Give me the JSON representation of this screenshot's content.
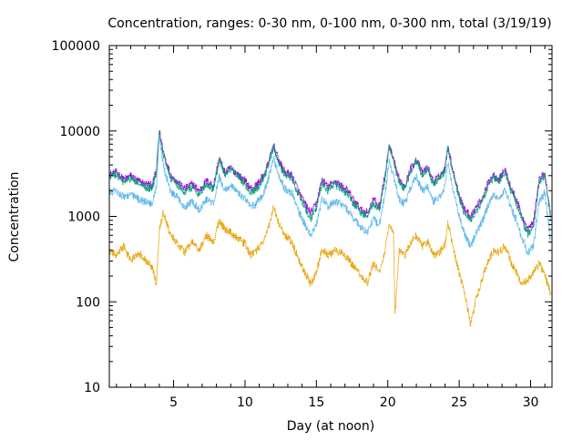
{
  "chart_data": {
    "type": "line",
    "title": "Concentration, ranges: 0-30 nm, 0-100 nm, 0-300 nm, total (3/19/19)",
    "xlabel": "Day (at noon)",
    "ylabel": "Concentration",
    "x_range": [
      0.5,
      31.5
    ],
    "y_range": [
      10,
      100000
    ],
    "y_scale": "log",
    "x_ticks": [
      5,
      10,
      15,
      20,
      25,
      30
    ],
    "x_tick_labels": [
      "5",
      "10",
      "15",
      "20",
      "25",
      "30"
    ],
    "x_minor_ticks": [
      1,
      2,
      3,
      4,
      6,
      7,
      8,
      9,
      11,
      12,
      13,
      14,
      16,
      17,
      18,
      19,
      21,
      22,
      23,
      24,
      26,
      27,
      28,
      29,
      31
    ],
    "y_ticks": [
      10,
      100,
      1000,
      10000,
      100000
    ],
    "y_tick_labels": [
      "10",
      "100",
      "1000",
      "10000",
      "100000"
    ],
    "grid": false,
    "legend": "none",
    "series": [
      {
        "color": "#9400d3",
        "points": [
          [
            0.5,
            3100
          ],
          [
            1,
            3300
          ],
          [
            1.5,
            2700
          ],
          [
            2,
            3000
          ],
          [
            2.5,
            2600
          ],
          [
            3,
            2400
          ],
          [
            3.5,
            2300
          ],
          [
            3.8,
            3500
          ],
          [
            4,
            10000
          ],
          [
            4.3,
            5500
          ],
          [
            4.8,
            3000
          ],
          [
            5.2,
            2600
          ],
          [
            5.8,
            2100
          ],
          [
            6.3,
            2400
          ],
          [
            6.8,
            2000
          ],
          [
            7.3,
            2600
          ],
          [
            7.8,
            2300
          ],
          [
            8.2,
            4800
          ],
          [
            8.6,
            3200
          ],
          [
            9,
            3700
          ],
          [
            9.5,
            3100
          ],
          [
            10,
            2600
          ],
          [
            10.4,
            2100
          ],
          [
            10.8,
            2300
          ],
          [
            11.3,
            3000
          ],
          [
            11.6,
            4000
          ],
          [
            12,
            6800
          ],
          [
            12.4,
            4300
          ],
          [
            12.8,
            3300
          ],
          [
            13.3,
            3000
          ],
          [
            13.8,
            1900
          ],
          [
            14.2,
            1400
          ],
          [
            14.6,
            1100
          ],
          [
            15,
            1400
          ],
          [
            15.4,
            2700
          ],
          [
            15.8,
            2200
          ],
          [
            16.3,
            2600
          ],
          [
            16.7,
            2300
          ],
          [
            17.2,
            2000
          ],
          [
            17.7,
            1500
          ],
          [
            18.1,
            1200
          ],
          [
            18.6,
            1100
          ],
          [
            19,
            1600
          ],
          [
            19.4,
            1300
          ],
          [
            19.8,
            3000
          ],
          [
            20.1,
            6800
          ],
          [
            20.4,
            4500
          ],
          [
            20.8,
            2700
          ],
          [
            21.2,
            2300
          ],
          [
            21.6,
            3600
          ],
          [
            22,
            4700
          ],
          [
            22.4,
            3300
          ],
          [
            22.8,
            3700
          ],
          [
            23.2,
            2600
          ],
          [
            23.6,
            2900
          ],
          [
            24,
            3600
          ],
          [
            24.2,
            6800
          ],
          [
            24.6,
            3200
          ],
          [
            25,
            1800
          ],
          [
            25.4,
            1200
          ],
          [
            25.8,
            1000
          ],
          [
            26.2,
            1300
          ],
          [
            26.6,
            1600
          ],
          [
            27,
            2400
          ],
          [
            27.4,
            3100
          ],
          [
            27.8,
            2700
          ],
          [
            28.2,
            3600
          ],
          [
            28.6,
            2200
          ],
          [
            29,
            1600
          ],
          [
            29.4,
            1000
          ],
          [
            29.8,
            700
          ],
          [
            30.2,
            850
          ],
          [
            30.6,
            2700
          ],
          [
            31,
            3200
          ],
          [
            31.4,
            1000
          ]
        ]
      },
      {
        "color": "#009e73",
        "points": [
          [
            0.5,
            3000
          ],
          [
            1,
            3100
          ],
          [
            1.5,
            2500
          ],
          [
            2,
            2800
          ],
          [
            2.5,
            2400
          ],
          [
            3,
            2200
          ],
          [
            3.5,
            2100
          ],
          [
            3.8,
            3300
          ],
          [
            4,
            9800
          ],
          [
            4.3,
            5300
          ],
          [
            4.8,
            2800
          ],
          [
            5.2,
            2400
          ],
          [
            5.8,
            1900
          ],
          [
            6.3,
            2200
          ],
          [
            6.8,
            1800
          ],
          [
            7.3,
            2400
          ],
          [
            7.8,
            2100
          ],
          [
            8.2,
            4600
          ],
          [
            8.6,
            3000
          ],
          [
            9,
            3500
          ],
          [
            9.5,
            2900
          ],
          [
            10,
            2400
          ],
          [
            10.4,
            1900
          ],
          [
            10.8,
            2100
          ],
          [
            11.3,
            2800
          ],
          [
            11.6,
            3800
          ],
          [
            12,
            6500
          ],
          [
            12.4,
            4100
          ],
          [
            12.8,
            3100
          ],
          [
            13.3,
            2800
          ],
          [
            13.8,
            1700
          ],
          [
            14.2,
            1250
          ],
          [
            14.6,
            950
          ],
          [
            15,
            1250
          ],
          [
            15.4,
            2500
          ],
          [
            15.8,
            2000
          ],
          [
            16.3,
            2400
          ],
          [
            16.7,
            2100
          ],
          [
            17.2,
            1800
          ],
          [
            17.7,
            1350
          ],
          [
            18.1,
            1100
          ],
          [
            18.6,
            1000
          ],
          [
            19,
            1450
          ],
          [
            19.4,
            1150
          ],
          [
            19.8,
            2800
          ],
          [
            20.1,
            6500
          ],
          [
            20.4,
            4300
          ],
          [
            20.8,
            2500
          ],
          [
            21.2,
            2100
          ],
          [
            21.6,
            3400
          ],
          [
            22,
            4500
          ],
          [
            22.4,
            3100
          ],
          [
            22.8,
            3500
          ],
          [
            23.2,
            2400
          ],
          [
            23.6,
            2700
          ],
          [
            24,
            3400
          ],
          [
            24.2,
            6500
          ],
          [
            24.6,
            3000
          ],
          [
            25,
            1650
          ],
          [
            25.4,
            1050
          ],
          [
            25.8,
            900
          ],
          [
            26.2,
            1150
          ],
          [
            26.6,
            1450
          ],
          [
            27,
            2200
          ],
          [
            27.4,
            2900
          ],
          [
            27.8,
            2500
          ],
          [
            28.2,
            3400
          ],
          [
            28.6,
            2000
          ],
          [
            29,
            1450
          ],
          [
            29.4,
            900
          ],
          [
            29.8,
            620
          ],
          [
            30.2,
            750
          ],
          [
            30.6,
            2500
          ],
          [
            31,
            3000
          ],
          [
            31.4,
            900
          ]
        ]
      },
      {
        "color": "#56b4e9",
        "points": [
          [
            0.5,
            1900
          ],
          [
            1,
            2000
          ],
          [
            1.5,
            1700
          ],
          [
            2,
            1800
          ],
          [
            2.5,
            1600
          ],
          [
            3,
            1500
          ],
          [
            3.5,
            1400
          ],
          [
            3.8,
            2200
          ],
          [
            4,
            9000
          ],
          [
            4.3,
            3800
          ],
          [
            4.8,
            1900
          ],
          [
            5.2,
            1700
          ],
          [
            5.8,
            1300
          ],
          [
            6.3,
            1500
          ],
          [
            6.8,
            1200
          ],
          [
            7.3,
            1600
          ],
          [
            7.8,
            1400
          ],
          [
            8.2,
            2900
          ],
          [
            8.6,
            2000
          ],
          [
            9,
            2300
          ],
          [
            9.5,
            1900
          ],
          [
            10,
            1600
          ],
          [
            10.4,
            1300
          ],
          [
            10.8,
            1400
          ],
          [
            11.3,
            1900
          ],
          [
            11.6,
            2600
          ],
          [
            12,
            4800
          ],
          [
            12.4,
            2900
          ],
          [
            12.8,
            2100
          ],
          [
            13.3,
            1900
          ],
          [
            13.8,
            1100
          ],
          [
            14.2,
            800
          ],
          [
            14.6,
            600
          ],
          [
            15,
            800
          ],
          [
            15.4,
            1600
          ],
          [
            15.8,
            1300
          ],
          [
            16.3,
            1500
          ],
          [
            16.7,
            1400
          ],
          [
            17.2,
            1200
          ],
          [
            17.7,
            900
          ],
          [
            18.1,
            750
          ],
          [
            18.6,
            650
          ],
          [
            19,
            950
          ],
          [
            19.4,
            750
          ],
          [
            19.8,
            1800
          ],
          [
            20.1,
            4500
          ],
          [
            20.4,
            2900
          ],
          [
            20.8,
            1600
          ],
          [
            21.2,
            1400
          ],
          [
            21.6,
            2200
          ],
          [
            22,
            2900
          ],
          [
            22.4,
            2000
          ],
          [
            22.8,
            2200
          ],
          [
            23.2,
            1500
          ],
          [
            23.6,
            1700
          ],
          [
            24,
            2200
          ],
          [
            24.2,
            4500
          ],
          [
            24.6,
            1900
          ],
          [
            25,
            1000
          ],
          [
            25.4,
            600
          ],
          [
            25.8,
            450
          ],
          [
            26.2,
            650
          ],
          [
            26.6,
            850
          ],
          [
            27,
            1300
          ],
          [
            27.4,
            1800
          ],
          [
            27.8,
            1600
          ],
          [
            28.2,
            2100
          ],
          [
            28.6,
            1300
          ],
          [
            29,
            900
          ],
          [
            29.4,
            550
          ],
          [
            29.8,
            380
          ],
          [
            30.2,
            450
          ],
          [
            30.6,
            1500
          ],
          [
            31,
            1900
          ],
          [
            31.4,
            500
          ]
        ]
      },
      {
        "color": "#e69f00",
        "points": [
          [
            0.5,
            400
          ],
          [
            1,
            350
          ],
          [
            1.5,
            450
          ],
          [
            2,
            300
          ],
          [
            2.5,
            380
          ],
          [
            3,
            320
          ],
          [
            3.5,
            250
          ],
          [
            3.8,
            160
          ],
          [
            4,
            700
          ],
          [
            4.3,
            1100
          ],
          [
            4.8,
            600
          ],
          [
            5.2,
            500
          ],
          [
            5.8,
            380
          ],
          [
            6.3,
            500
          ],
          [
            6.8,
            400
          ],
          [
            7.3,
            600
          ],
          [
            7.8,
            500
          ],
          [
            8.2,
            900
          ],
          [
            8.6,
            700
          ],
          [
            9,
            650
          ],
          [
            9.5,
            550
          ],
          [
            10,
            480
          ],
          [
            10.4,
            350
          ],
          [
            10.8,
            400
          ],
          [
            11.3,
            500
          ],
          [
            11.6,
            700
          ],
          [
            12,
            1300
          ],
          [
            12.4,
            800
          ],
          [
            12.8,
            600
          ],
          [
            13.3,
            500
          ],
          [
            13.8,
            300
          ],
          [
            14.2,
            220
          ],
          [
            14.6,
            160
          ],
          [
            15,
            220
          ],
          [
            15.4,
            420
          ],
          [
            15.8,
            350
          ],
          [
            16.3,
            400
          ],
          [
            16.7,
            380
          ],
          [
            17.2,
            320
          ],
          [
            17.7,
            250
          ],
          [
            18.1,
            200
          ],
          [
            18.6,
            170
          ],
          [
            19,
            280
          ],
          [
            19.4,
            220
          ],
          [
            19.8,
            400
          ],
          [
            20.1,
            800
          ],
          [
            20.4,
            600
          ],
          [
            20.5,
            70
          ],
          [
            20.8,
            400
          ],
          [
            21.2,
            350
          ],
          [
            21.6,
            500
          ],
          [
            22,
            600
          ],
          [
            22.4,
            450
          ],
          [
            22.8,
            500
          ],
          [
            23.2,
            350
          ],
          [
            23.6,
            380
          ],
          [
            24,
            450
          ],
          [
            24.2,
            900
          ],
          [
            24.6,
            400
          ],
          [
            25,
            220
          ],
          [
            25.4,
            120
          ],
          [
            25.8,
            55
          ],
          [
            26.2,
            110
          ],
          [
            26.6,
            180
          ],
          [
            27,
            300
          ],
          [
            27.4,
            400
          ],
          [
            27.8,
            380
          ],
          [
            28.2,
            450
          ],
          [
            28.6,
            300
          ],
          [
            29,
            220
          ],
          [
            29.4,
            160
          ],
          [
            29.8,
            180
          ],
          [
            30.2,
            220
          ],
          [
            30.6,
            280
          ],
          [
            31,
            200
          ],
          [
            31.4,
            130
          ]
        ]
      }
    ]
  }
}
